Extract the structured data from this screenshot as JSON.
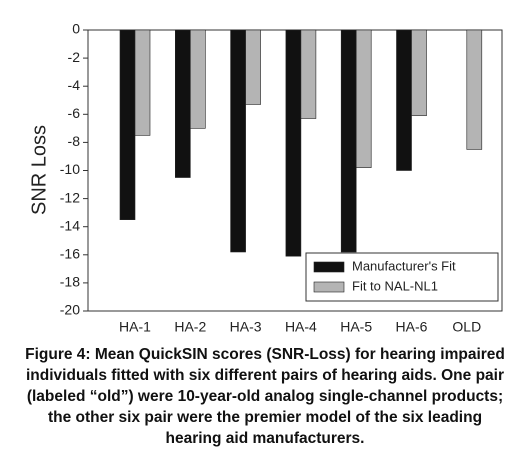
{
  "chart_data": {
    "type": "bar",
    "y_label": "SNR Loss",
    "categories": [
      "HA-1",
      "HA-2",
      "HA-3",
      "HA-4",
      "HA-5",
      "HA-6",
      "OLD"
    ],
    "series": [
      {
        "name": "Manufacturer's Fit",
        "color": "#111111",
        "values": [
          -13.5,
          -10.5,
          -15.8,
          -16.1,
          -15.8,
          -10,
          null
        ]
      },
      {
        "name": "Fit to NAL-NL1",
        "color": "#b4b4b4",
        "values": [
          -7.5,
          -7,
          -5.3,
          -6.3,
          -9.8,
          -6.1,
          -8.5
        ]
      }
    ],
    "ylim": [
      -20,
      0
    ],
    "yticks": [
      0,
      -2,
      -4,
      -6,
      -8,
      -10,
      -12,
      -14,
      -16,
      -18,
      -20
    ],
    "grid": false,
    "legend": "lower right",
    "caption": "Figure 4: Mean QuickSIN scores (SNR-Loss) for hearing impaired individuals fitted with six different pairs of hearing aids. One pair (labeled “old”) were 10-year-old analog single-channel products; the other six pair were the premier model of the six leading hearing aid manufacturers."
  }
}
